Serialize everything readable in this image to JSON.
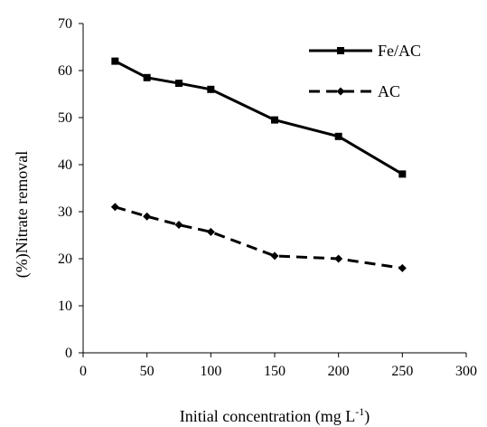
{
  "chart_data": {
    "type": "line",
    "xlabel": "Initial concentration (mg L",
    "xlabel_sup": "-1",
    "xlabel_close": ")",
    "ylabel": "(%)Nitrate removal",
    "xlim": [
      0,
      300
    ],
    "ylim": [
      0,
      70
    ],
    "x_ticks": [
      0,
      50,
      100,
      150,
      200,
      250,
      300
    ],
    "y_ticks": [
      0,
      10,
      20,
      30,
      40,
      50,
      60,
      70
    ],
    "grid": false,
    "legend_position": "top-right",
    "series": [
      {
        "name": "Fe/AC",
        "style": "solid",
        "marker": "square",
        "color": "#000000",
        "x": [
          25,
          50,
          75,
          100,
          150,
          200,
          250
        ],
        "y": [
          62,
          58.5,
          57.3,
          56,
          49.5,
          46,
          38
        ]
      },
      {
        "name": "AC",
        "style": "dashed",
        "marker": "diamond",
        "color": "#000000",
        "x": [
          25,
          50,
          75,
          100,
          150,
          200,
          250
        ],
        "y": [
          31,
          29,
          27.2,
          25.7,
          20.6,
          20,
          18
        ]
      }
    ]
  }
}
